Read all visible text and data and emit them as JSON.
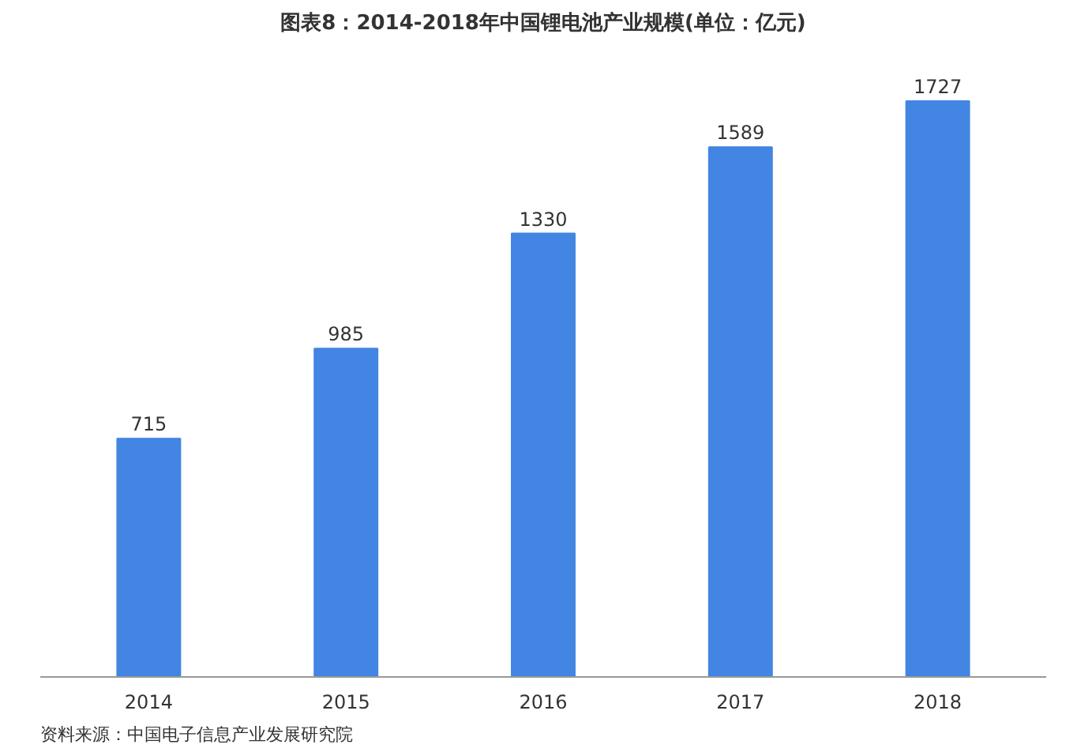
{
  "chart_data": {
    "type": "bar",
    "title": "图表8：2014-2018年中国锂电池产业规模(单位：亿元)",
    "categories": [
      "2014",
      "2015",
      "2016",
      "2017",
      "2018"
    ],
    "values": [
      715,
      985,
      1330,
      1589,
      1727
    ],
    "color": "#4285e2",
    "data_labels": true,
    "grid": false,
    "annotations": [
      "资料来源：中国电子信息产业发展研究院"
    ]
  }
}
